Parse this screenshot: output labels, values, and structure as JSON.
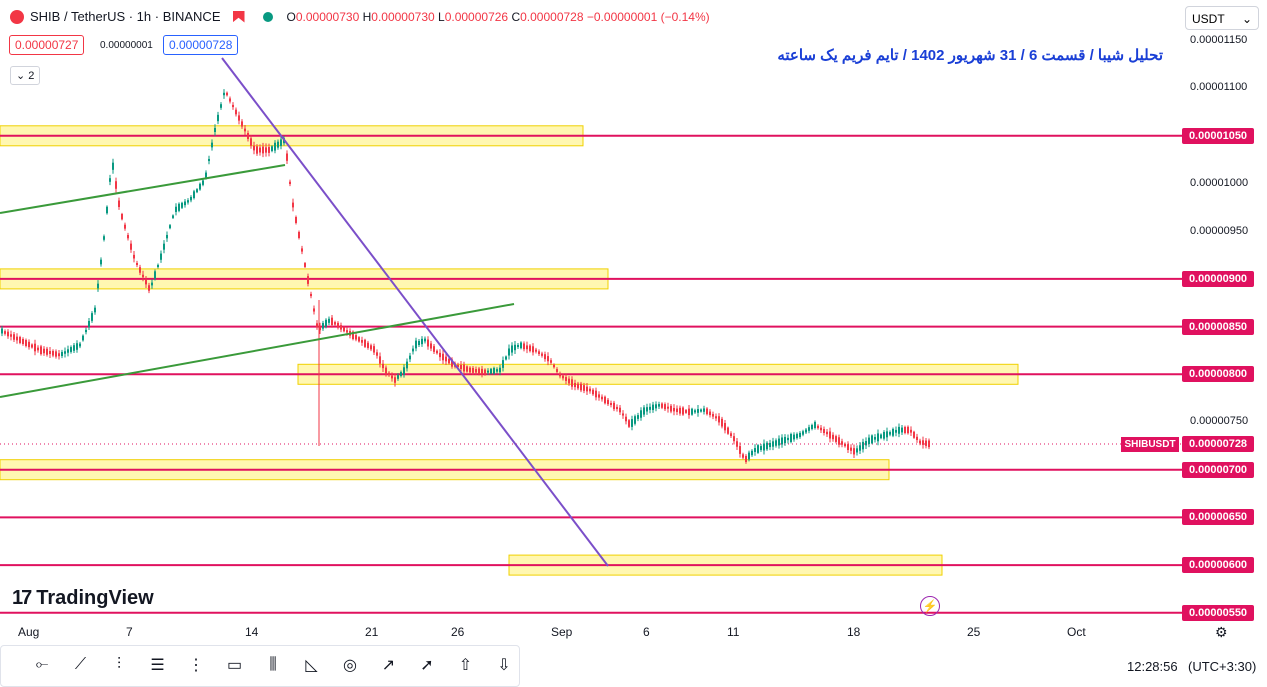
{
  "legend": {
    "symbol": "SHIB / TetherUS · 1h · BINANCE",
    "ohlc": {
      "o_label": "O",
      "o": "0.00000730",
      "h_label": "H",
      "h": "0.00000730",
      "l_label": "L",
      "l": "0.00000726",
      "c_label": "C",
      "c": "0.00000728",
      "change": "−0.00000001 (−0.14%)"
    },
    "sell_price": "0.00000727",
    "spread": "0.00000001",
    "buy_price": "0.00000728",
    "indicators_count": "2"
  },
  "title_annotation": "تحلیل شیبا / قسمت 6 / 31 شهریور 1402 / تایم فریم یک ساعته",
  "currency": "USDT",
  "price_axis": {
    "labels": [
      "0.00001150",
      "0.00001100",
      "0.00001000",
      "0.00000950",
      "0.00000750"
    ],
    "tags": [
      "0.00001050",
      "0.00000900",
      "0.00000850",
      "0.00000800",
      "0.00000700",
      "0.00000650",
      "0.00000600",
      "0.00000550"
    ],
    "current_symbol": "SHIBUSDT",
    "current_price": "0.00000728"
  },
  "time_axis": [
    "Aug",
    "7",
    "14",
    "21",
    "26",
    "Sep",
    "6",
    "11",
    "18",
    "25",
    "Oct"
  ],
  "logo": "TradingView",
  "clock": "12:28:56",
  "timezone": "(UTC+3:30)",
  "colors": {
    "level_line": "#e0115f",
    "zone_fill": "#fff59d",
    "trend_purple": "#7b4fc9",
    "trend_green": "#3a9a3a",
    "up_candle": "#089981",
    "down_candle": "#f23645",
    "title_text": "#1a3fd6"
  },
  "toolbar": [
    "dot-line-icon",
    "trend-line-icon",
    "vertical-line-icon",
    "fib-icon",
    "parallel-channel-icon",
    "rectangle-icon",
    "pitchfork-icon",
    "triangle-icon",
    "circle-icon",
    "ray-icon",
    "arrow-icon",
    "arrow-up-icon",
    "arrow-down-icon"
  ]
}
